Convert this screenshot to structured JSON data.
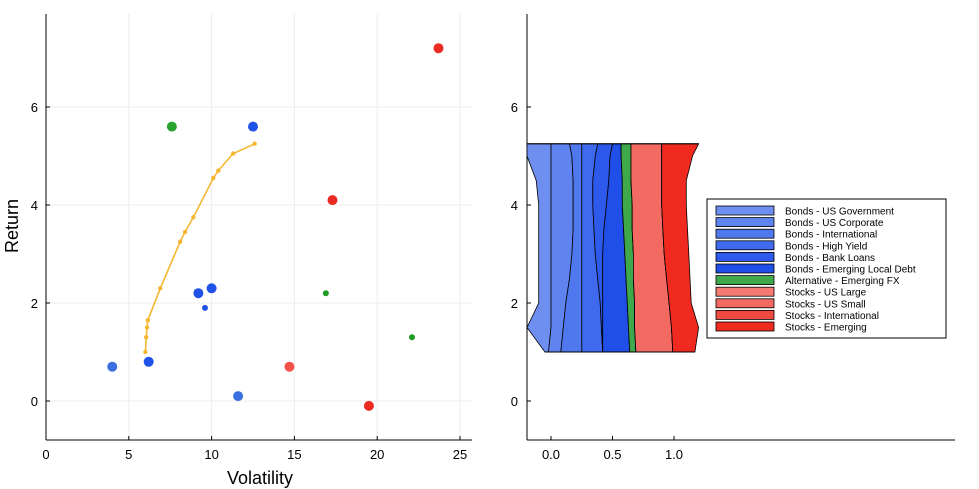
{
  "chart_data": [
    {
      "type": "scatter",
      "title": "",
      "xlabel": "Volatility",
      "ylabel": "Return",
      "xlim": [
        0,
        26
      ],
      "ylim": [
        -0.8,
        7.9
      ],
      "xticks": [
        0,
        5,
        10,
        15,
        20,
        25
      ],
      "yticks": [
        0,
        2,
        4,
        6
      ],
      "grid": true,
      "frontier": {
        "color": "#f5b731",
        "points": [
          [
            6.0,
            1.0
          ],
          [
            6.05,
            1.3
          ],
          [
            6.1,
            1.5
          ],
          [
            6.15,
            1.65
          ],
          [
            6.9,
            2.3
          ],
          [
            8.1,
            3.25
          ],
          [
            8.4,
            3.45
          ],
          [
            8.9,
            3.75
          ],
          [
            10.1,
            4.55
          ],
          [
            10.4,
            4.7
          ],
          [
            11.3,
            5.05
          ],
          [
            12.6,
            5.25
          ]
        ]
      },
      "assets": [
        {
          "x": 4.0,
          "y": 0.7,
          "color": "#3b6fe0",
          "size": "large"
        },
        {
          "x": 6.2,
          "y": 0.8,
          "color": "#2152e8",
          "size": "large"
        },
        {
          "x": 9.2,
          "y": 2.2,
          "color": "#2152e8",
          "size": "large"
        },
        {
          "x": 9.6,
          "y": 1.9,
          "color": "#2152e8",
          "size": "small"
        },
        {
          "x": 10.0,
          "y": 2.3,
          "color": "#2152e8",
          "size": "large"
        },
        {
          "x": 11.6,
          "y": 0.1,
          "color": "#3b6fe0",
          "size": "large"
        },
        {
          "x": 12.5,
          "y": 5.6,
          "color": "#2152e8",
          "size": "large"
        },
        {
          "x": 7.6,
          "y": 5.6,
          "color": "#28a32e",
          "size": "large"
        },
        {
          "x": 16.9,
          "y": 2.2,
          "color": "#1f9a24",
          "size": "small"
        },
        {
          "x": 22.1,
          "y": 1.3,
          "color": "#1f9a24",
          "size": "small"
        },
        {
          "x": 14.7,
          "y": 0.7,
          "color": "#f3524a",
          "size": "large"
        },
        {
          "x": 17.3,
          "y": 4.1,
          "color": "#ec2a22",
          "size": "large"
        },
        {
          "x": 19.5,
          "y": -0.1,
          "color": "#ec2a22",
          "size": "large"
        },
        {
          "x": 23.7,
          "y": 7.2,
          "color": "#ec2a22",
          "size": "large"
        }
      ]
    },
    {
      "type": "area",
      "title": "",
      "xlabel": "",
      "ylabel": "",
      "xlim": [
        -0.2,
        3.3
      ],
      "ylim": [
        -0.8,
        7.9
      ],
      "xticks": [
        0.0,
        0.5,
        1.0
      ],
      "xtick_labels": [
        "0.0",
        "0.5",
        "1.0"
      ],
      "yticks": [
        0,
        2,
        4,
        6
      ],
      "yticks_labels": [
        "0",
        "2",
        "4",
        "6"
      ],
      "legend_position": "right",
      "y_levels": [
        1.0,
        1.5,
        2.0,
        2.5,
        3.0,
        3.5,
        4.0,
        4.5,
        5.0,
        5.25
      ],
      "series": [
        {
          "name": "Bonds - US Government",
          "color": "#6e8ff0",
          "cumulative": [
            -0.02,
            0.0,
            0.0,
            0.0,
            0.0,
            0.0,
            0.0,
            0.0,
            0.0,
            0.0
          ]
        },
        {
          "name": "Bonds - US Corporate",
          "color": "#5f84f0",
          "cumulative": [
            0.08,
            0.1,
            0.12,
            0.15,
            0.17,
            0.18,
            0.18,
            0.18,
            0.17,
            0.15
          ]
        },
        {
          "name": "Bonds - International",
          "color": "#5078ee",
          "cumulative": [
            0.25,
            0.25,
            0.25,
            0.25,
            0.25,
            0.25,
            0.25,
            0.25,
            0.25,
            0.25
          ]
        },
        {
          "name": "Bonds - High Yield",
          "color": "#3f6aee",
          "cumulative": [
            0.42,
            0.41,
            0.4,
            0.38,
            0.36,
            0.35,
            0.34,
            0.34,
            0.36,
            0.38
          ]
        },
        {
          "name": "Bonds - Bank Loans",
          "color": "#2e5aec",
          "cumulative": [
            0.42,
            0.42,
            0.42,
            0.42,
            0.42,
            0.43,
            0.45,
            0.47,
            0.48,
            0.5
          ]
        },
        {
          "name": "Bonds - Emerging Local Debt",
          "color": "#1f4ee8",
          "cumulative": [
            0.64,
            0.63,
            0.62,
            0.61,
            0.6,
            0.59,
            0.58,
            0.58,
            0.57,
            0.57
          ]
        },
        {
          "name": "Alternative - Emerging FX",
          "color": "#3fa84a",
          "cumulative": [
            0.69,
            0.68,
            0.68,
            0.67,
            0.67,
            0.66,
            0.66,
            0.65,
            0.65,
            0.65
          ]
        },
        {
          "name": "Stocks - US Large",
          "color": "#f57b74",
          "cumulative": [
            0.69,
            0.68,
            0.68,
            0.67,
            0.67,
            0.66,
            0.66,
            0.65,
            0.65,
            0.65
          ]
        },
        {
          "name": "Stocks - US Small",
          "color": "#f26a62",
          "cumulative": [
            0.99,
            0.98,
            0.96,
            0.94,
            0.92,
            0.91,
            0.9,
            0.9,
            0.9,
            0.9
          ]
        },
        {
          "name": "Stocks - International",
          "color": "#ef4a40",
          "cumulative": [
            0.99,
            0.98,
            0.96,
            0.94,
            0.92,
            0.91,
            0.9,
            0.9,
            0.9,
            0.9
          ]
        },
        {
          "name": "Stocks - Emerging",
          "color": "#f12a20",
          "cumulative": [
            1.17,
            1.2,
            1.14,
            1.13,
            1.12,
            1.11,
            1.1,
            1.1,
            1.15,
            1.2
          ]
        }
      ],
      "left_edge": [
        -0.05,
        -0.22,
        -0.1,
        -0.1,
        -0.1,
        -0.1,
        -0.1,
        -0.12,
        -0.2,
        -0.2
      ]
    }
  ]
}
